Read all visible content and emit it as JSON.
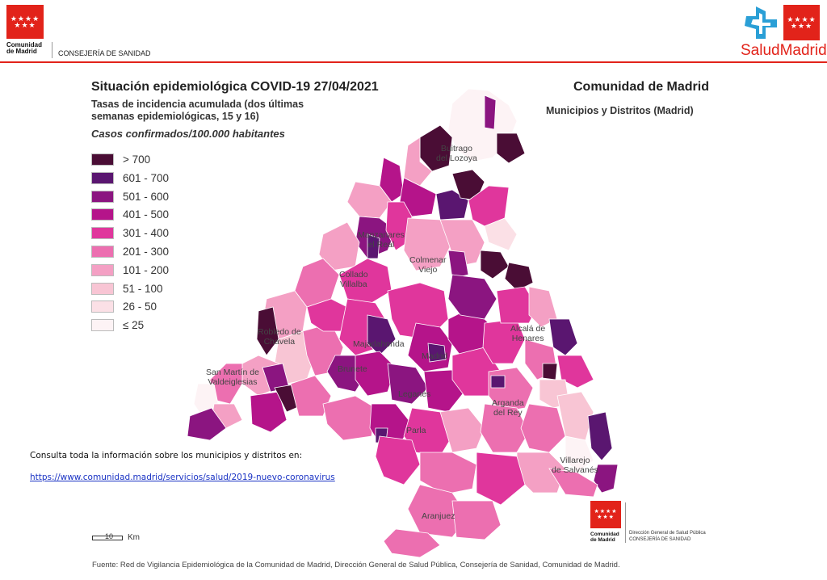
{
  "header": {
    "org_line1": "Comunidad",
    "org_line2": "de Madrid",
    "department": "CONSEJERÍA DE SANIDAD",
    "brand": "SaludMadrid",
    "brand_color": "#e2231a"
  },
  "map": {
    "title": "Situación epidemiológica COVID-19  27/04/2021",
    "subtitle_line1": "Tasas de incidencia acumulada (dos últimas",
    "subtitle_line2": "semanas epidemiológicas, 15 y 16)",
    "units": "Casos confirmados/100.000 habitantes",
    "region_title": "Comunidad de Madrid",
    "region_subtitle": "Municipios y Distritos (Madrid)",
    "legend": [
      {
        "label": "> 700",
        "color": "#4a0d35"
      },
      {
        "label": "601 - 700",
        "color": "#5a1670"
      },
      {
        "label": "501 - 600",
        "color": "#8b1580"
      },
      {
        "label": "401 - 500",
        "color": "#b5148a"
      },
      {
        "label": "301 - 400",
        "color": "#e0369c"
      },
      {
        "label": "201 - 300",
        "color": "#ec6fb0"
      },
      {
        "label": "101 - 200",
        "color": "#f4a0c4"
      },
      {
        "label": "51 - 100",
        "color": "#f8c5d4"
      },
      {
        "label": "26 - 50",
        "color": "#fbe0e6"
      },
      {
        "label": "≤ 25",
        "color": "#fdf3f5"
      }
    ],
    "places": [
      {
        "name": "Buitrago\ndel Lozoya"
      },
      {
        "name": "Manzanares\nel Real"
      },
      {
        "name": "Colmenar\nViejo"
      },
      {
        "name": "Collado\nVillalba"
      },
      {
        "name": "Alcalá de\nHenares"
      },
      {
        "name": "Robledo de\nChavela"
      },
      {
        "name": "Majadahonda"
      },
      {
        "name": "Madrid"
      },
      {
        "name": "San Martín de\nValdeiglesias"
      },
      {
        "name": "Brunete"
      },
      {
        "name": "Leganés"
      },
      {
        "name": "Arganda\ndel Rey"
      },
      {
        "name": "Parla"
      },
      {
        "name": "Villarejo\nde Salvanés"
      },
      {
        "name": "Aranjuez"
      }
    ],
    "scale_value": "10",
    "scale_unit": "Km"
  },
  "info": {
    "consulta": "Consulta toda la información sobre los municipios y distritos en:",
    "link": "https://www.comunidad.madrid/servicios/salud/2019-nuevo-coronavirus"
  },
  "footer_logo": {
    "org_line1": "Comunidad",
    "org_line2": "de Madrid",
    "dg_line1": "Dirección General de Salud Pública",
    "dg_line2": "CONSEJERÍA DE SANIDAD"
  },
  "source": "Fuente: Red de Vigilancia Epidemiológica de la Comunidad de Madrid, Dirección General de Salud Pública, Consejería de Sanidad, Comunidad de Madrid."
}
